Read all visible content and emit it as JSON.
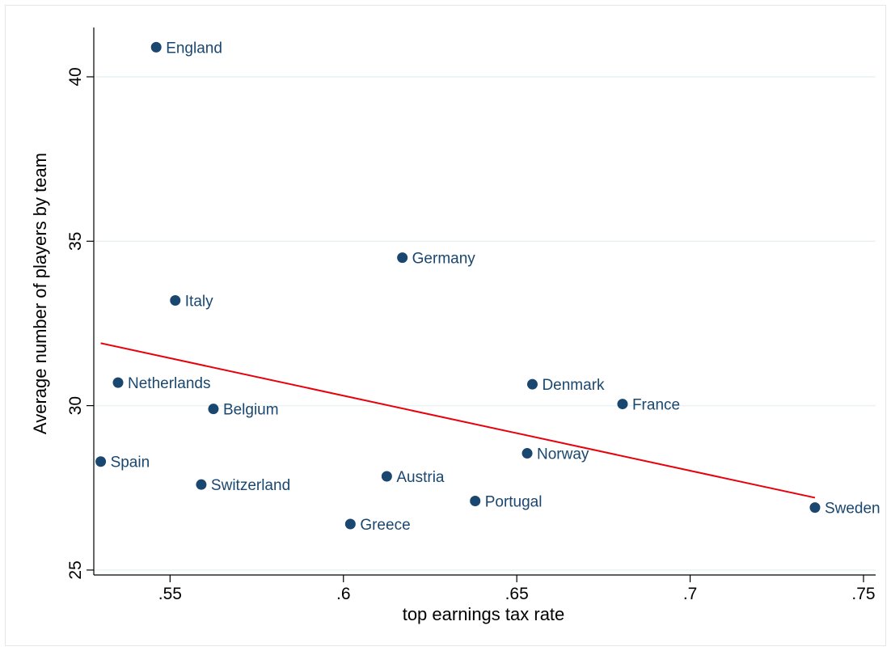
{
  "chart_data": {
    "type": "scatter",
    "xlabel": "top earnings tax rate",
    "ylabel": "Average number of players by team",
    "xlim": [
      0.528,
      0.7535
    ],
    "ylim": [
      24.85,
      41.5
    ],
    "xticks": [
      0.55,
      0.6,
      0.65,
      0.7,
      0.75
    ],
    "xtick_labels": [
      ".55",
      ".6",
      ".65",
      ".7",
      ".75"
    ],
    "yticks": [
      25,
      30,
      35,
      40
    ],
    "ytick_labels": [
      "25",
      "30",
      "35",
      "40"
    ],
    "grid": "horizontal",
    "points": [
      {
        "label": "England",
        "x": 0.546,
        "y": 40.9
      },
      {
        "label": "Germany",
        "x": 0.617,
        "y": 34.5
      },
      {
        "label": "Italy",
        "x": 0.5515,
        "y": 33.2
      },
      {
        "label": "Netherlands",
        "x": 0.535,
        "y": 30.7
      },
      {
        "label": "Belgium",
        "x": 0.5625,
        "y": 29.9
      },
      {
        "label": "Spain",
        "x": 0.53,
        "y": 28.3
      },
      {
        "label": "Switzerland",
        "x": 0.559,
        "y": 27.6
      },
      {
        "label": "Austria",
        "x": 0.6125,
        "y": 27.85
      },
      {
        "label": "Greece",
        "x": 0.602,
        "y": 26.4
      },
      {
        "label": "Portugal",
        "x": 0.638,
        "y": 27.1
      },
      {
        "label": "Norway",
        "x": 0.653,
        "y": 28.55
      },
      {
        "label": "Denmark",
        "x": 0.6545,
        "y": 30.65
      },
      {
        "label": "France",
        "x": 0.6805,
        "y": 30.05
      },
      {
        "label": "Sweden",
        "x": 0.736,
        "y": 26.9
      }
    ],
    "fit_line": {
      "x": [
        0.53,
        0.736
      ],
      "y": [
        31.9,
        27.2
      ]
    },
    "colors": {
      "points": "#1a476f",
      "labels": "#1a476f",
      "fit_line": "#e8000b",
      "grid": "#eaf2f3",
      "axis": "#000000"
    }
  }
}
